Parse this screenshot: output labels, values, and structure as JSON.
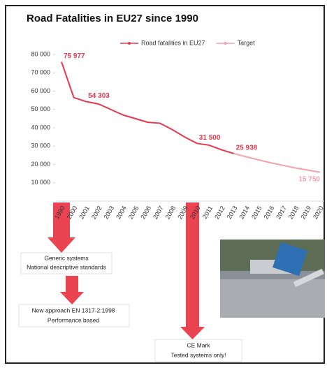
{
  "chart_data": {
    "type": "line",
    "title": "Road Fatalities in EU27 since 1990",
    "categories": [
      "1990",
      "2000",
      "2001",
      "2002",
      "2003",
      "2004",
      "2005",
      "2006",
      "2007",
      "2008",
      "2009",
      "2010",
      "2011",
      "2012",
      "2013",
      "2014",
      "2015",
      "2016",
      "2017",
      "2018",
      "2019",
      "2020"
    ],
    "series": [
      {
        "name": "Road fatalities in EU27",
        "color": "#e8374f",
        "values": [
          75977,
          56500,
          54303,
          53000,
          50000,
          47000,
          45000,
          43000,
          42500,
          39000,
          35000,
          31500,
          30500,
          28000,
          25938,
          null,
          null,
          null,
          null,
          null,
          null,
          null
        ],
        "value_labels": [
          "75 977",
          null,
          "54 303",
          null,
          null,
          null,
          null,
          null,
          null,
          null,
          null,
          "31 500",
          null,
          null,
          "25 938",
          null,
          null,
          null,
          null,
          null,
          null,
          null
        ]
      },
      {
        "name": "Target",
        "color": "#f4a0ad",
        "values": [
          null,
          null,
          null,
          null,
          null,
          null,
          null,
          null,
          null,
          null,
          null,
          null,
          null,
          null,
          25938,
          24200,
          22500,
          20900,
          19500,
          18100,
          16900,
          15750
        ],
        "value_labels": [
          null,
          null,
          null,
          null,
          null,
          null,
          null,
          null,
          null,
          null,
          null,
          null,
          null,
          null,
          null,
          null,
          null,
          null,
          null,
          null,
          null,
          "15 750"
        ]
      }
    ],
    "ylim": [
      0,
      80000
    ],
    "yticks": [
      {
        "value": 10000,
        "label": "10 000"
      },
      {
        "value": 20000,
        "label": "20 000"
      },
      {
        "value": 30000,
        "label": "30 000"
      },
      {
        "value": 40000,
        "label": "40 000"
      },
      {
        "value": 50000,
        "label": "50 000"
      },
      {
        "value": 60000,
        "label": "60 000"
      },
      {
        "value": 70000,
        "label": "70 000"
      },
      {
        "value": 80000,
        "label": "80 000"
      }
    ],
    "grid": false,
    "legend": "top",
    "annotations": [
      [
        "Generic systems",
        "National descriptive standards"
      ],
      [
        "New approach EN 1317-2:1998",
        "Performance based"
      ],
      [
        "CE Mark",
        "Tested systems only!"
      ]
    ]
  }
}
